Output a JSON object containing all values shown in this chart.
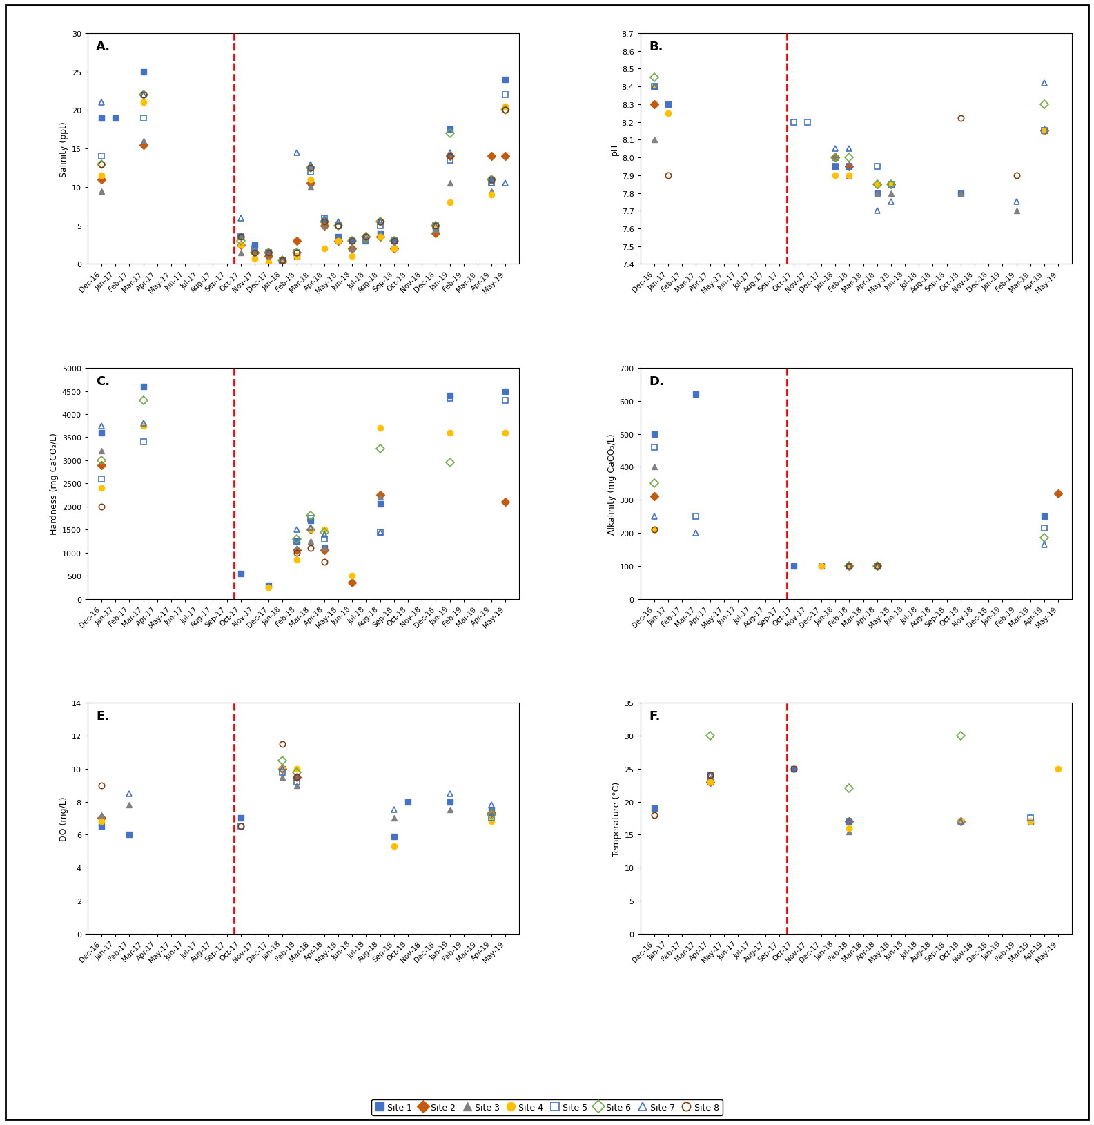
{
  "x_labels": [
    "Dec-16",
    "Jan-17",
    "Feb-17",
    "Mar-17",
    "Apr-17",
    "May-17",
    "Jun-17",
    "Jul-17",
    "Aug-17",
    "Sep-17",
    "Oct-17",
    "Nov-17",
    "Dec-17",
    "Jan-18",
    "Feb-18",
    "Mar-18",
    "Apr-18",
    "May-18",
    "Jun-18",
    "Jul-18",
    "Aug-18",
    "Sep-18",
    "Oct-18",
    "Nov-18",
    "Dec-18",
    "Jan-19",
    "Feb-19",
    "Mar-19",
    "Apr-19",
    "May-19"
  ],
  "sites": [
    "Site 1",
    "Site 2",
    "Site 3",
    "Site 4",
    "Site 5",
    "Site 6",
    "Site 7",
    "Site 8"
  ],
  "colors": [
    "#4472C4",
    "#C55A11",
    "#808080",
    "#FFC000",
    "#4472C4",
    "#70AD47",
    "#4472C4",
    "#843C0C"
  ],
  "markers": [
    "s",
    "D",
    "^",
    "o",
    "s",
    "D",
    "^",
    "o"
  ],
  "filled": [
    true,
    true,
    true,
    true,
    false,
    false,
    false,
    false
  ],
  "panel_labels": [
    "A.",
    "B.",
    "C.",
    "D.",
    "E.",
    "F."
  ],
  "salinity": [
    [
      0,
      19,
      1,
      19,
      3,
      25,
      10,
      3.5,
      11,
      2.5,
      12,
      1.5,
      13,
      0.5,
      14,
      1.0,
      15,
      10.5,
      16,
      5.5,
      17,
      3.5,
      18,
      3.0,
      19,
      3.5,
      20,
      4.0,
      21,
      3.0,
      24,
      4.5,
      25,
      17.5,
      28,
      11.0,
      29,
      24.0
    ],
    [
      0,
      11,
      3,
      15.5,
      10,
      2.5,
      11,
      1.5,
      12,
      1.0,
      13,
      0.3,
      14,
      3.0,
      15,
      10.5,
      16,
      5.0,
      17,
      3.0,
      18,
      2.0,
      19,
      3.5,
      20,
      3.5,
      21,
      2.0,
      24,
      4.0,
      25,
      14.0,
      28,
      14.0,
      29,
      14.0
    ],
    [
      0,
      9.5,
      3,
      16.0,
      10,
      1.5,
      11,
      1.2,
      12,
      0.5,
      13,
      0.2,
      14,
      1.0,
      15,
      10.0,
      16,
      5.0,
      17,
      3.0,
      18,
      2.0,
      19,
      3.0,
      20,
      4.0,
      21,
      2.5,
      24,
      4.5,
      25,
      10.5,
      28,
      9.5
    ],
    [
      0,
      11.5,
      3,
      21.0,
      10,
      2.5,
      11,
      0.7,
      12,
      0.2,
      13,
      0.2,
      14,
      1.0,
      15,
      11.0,
      16,
      2.0,
      17,
      3.0,
      18,
      1.0,
      19,
      3.5,
      20,
      3.5,
      21,
      2.0,
      24,
      5.0,
      25,
      8.0,
      28,
      9.0,
      29,
      20.5
    ],
    [
      0,
      14,
      3,
      19.0,
      10,
      3.5,
      11,
      2.0,
      12,
      1.5,
      13,
      0.5,
      14,
      1.5,
      15,
      12.0,
      16,
      6.0,
      17,
      5.0,
      18,
      3.0,
      19,
      3.0,
      20,
      5.0,
      21,
      3.0,
      24,
      5.0,
      25,
      13.5,
      28,
      10.5,
      29,
      22.0
    ],
    [
      0,
      13,
      3,
      22.0,
      10,
      3.0,
      11,
      1.5,
      12,
      1.5,
      13,
      0.5,
      14,
      1.5,
      15,
      12.5,
      16,
      5.5,
      17,
      5.0,
      18,
      3.0,
      19,
      3.5,
      20,
      5.5,
      21,
      3.0,
      24,
      5.0,
      25,
      17.0,
      28,
      11.0,
      29,
      20.0
    ],
    [
      0,
      21,
      3,
      22.0,
      10,
      6.0,
      11,
      2.0,
      12,
      1.5,
      13,
      0.5,
      14,
      14.5,
      15,
      13.0,
      16,
      6.0,
      17,
      5.5,
      18,
      3.0,
      19,
      3.5,
      20,
      5.5,
      21,
      3.0,
      24,
      5.0,
      25,
      14.5,
      28,
      10.5,
      29,
      10.5
    ],
    [
      0,
      13,
      3,
      22.0,
      10,
      3.5,
      11,
      1.5,
      12,
      1.5,
      13,
      0.5,
      14,
      1.5,
      15,
      12.5,
      16,
      5.5,
      17,
      5.0,
      18,
      3.0,
      19,
      3.5,
      20,
      5.5,
      21,
      3.0,
      24,
      5.0,
      25,
      14.0,
      28,
      11.0,
      29,
      20.0
    ]
  ],
  "pH": [
    [
      0,
      8.4,
      1,
      8.3,
      13,
      7.95,
      14,
      7.95,
      16,
      7.8,
      17,
      7.85,
      22,
      7.8,
      28,
      8.15
    ],
    [
      0,
      8.3,
      13,
      8.0,
      14,
      7.95,
      16,
      7.85,
      17,
      7.85,
      28,
      8.15
    ],
    [
      0,
      8.1,
      13,
      8.0,
      14,
      7.9,
      16,
      7.8,
      17,
      7.8,
      22,
      7.8,
      26,
      7.7
    ],
    [
      0,
      8.4,
      1,
      8.25,
      13,
      7.9,
      14,
      7.9,
      16,
      7.85,
      17,
      7.85,
      28,
      8.15
    ],
    [
      0,
      8.4,
      10,
      8.2,
      11,
      8.2,
      13,
      7.95,
      14,
      7.95,
      16,
      7.95,
      17,
      7.85,
      28,
      8.15
    ],
    [
      0,
      8.45,
      13,
      8.0,
      14,
      8.0,
      16,
      7.85,
      17,
      7.85,
      28,
      8.3
    ],
    [
      0,
      8.4,
      13,
      8.05,
      14,
      8.05,
      16,
      7.7,
      17,
      7.75,
      26,
      7.75,
      28,
      8.42
    ],
    [
      1,
      7.9,
      22,
      8.22,
      26,
      7.9
    ]
  ],
  "hardness": [
    [
      0,
      3600,
      3,
      4600,
      10,
      550,
      12,
      300,
      14,
      1250,
      15,
      1700,
      16,
      1100,
      20,
      2050,
      25,
      4400,
      29,
      4500
    ],
    [
      0,
      2900,
      14,
      1050,
      15,
      1500,
      16,
      1050,
      18,
      350,
      20,
      2250,
      29,
      2100
    ],
    [
      0,
      3200,
      14,
      1100,
      15,
      1250,
      16,
      1100,
      20,
      2200
    ],
    [
      0,
      2400,
      3,
      3750,
      12,
      250,
      14,
      850,
      15,
      1500,
      16,
      1500,
      18,
      500,
      20,
      3700,
      25,
      3600,
      29,
      3600
    ],
    [
      0,
      2600,
      3,
      3400,
      14,
      1250,
      15,
      1750,
      16,
      1300,
      20,
      1450,
      25,
      4350,
      29,
      4300
    ],
    [
      0,
      3000,
      3,
      4300,
      14,
      1300,
      15,
      1800,
      16,
      1450,
      20,
      3250,
      25,
      2950
    ],
    [
      0,
      3750,
      3,
      3800,
      14,
      1500,
      15,
      1550,
      16,
      1400,
      20,
      1450
    ],
    [
      0,
      2000,
      14,
      1000,
      15,
      1100,
      16,
      800
    ]
  ],
  "alkalinity": [
    [
      0,
      500,
      3,
      620,
      10,
      100,
      12,
      100,
      14,
      100,
      16,
      100,
      28,
      250
    ],
    [
      0,
      310,
      14,
      100,
      16,
      100,
      29,
      320
    ],
    [
      0,
      400,
      14,
      100,
      16,
      100
    ],
    [
      0,
      210,
      12,
      100,
      14,
      100,
      16,
      100
    ],
    [
      0,
      460,
      3,
      250,
      14,
      100,
      16,
      100,
      28,
      215
    ],
    [
      0,
      350,
      14,
      100,
      16,
      100,
      28,
      185
    ],
    [
      0,
      250,
      3,
      200,
      14,
      100,
      16,
      100,
      28,
      165
    ],
    [
      0,
      210,
      14,
      100,
      16,
      100
    ]
  ],
  "DO": [
    [
      0,
      6.5,
      2,
      6.0,
      10,
      7.0,
      13,
      10.0,
      14,
      9.5,
      21,
      5.9,
      22,
      8.0,
      25,
      8.0,
      28,
      7.5
    ],
    [
      0,
      7.0,
      13,
      10.0,
      14,
      9.5,
      28,
      7.3
    ],
    [
      0,
      7.2,
      2,
      7.8,
      13,
      9.5,
      14,
      9.0,
      21,
      7.0,
      25,
      7.5,
      28,
      7.5
    ],
    [
      0,
      6.8,
      13,
      10.0,
      14,
      10.0,
      21,
      5.3,
      28,
      6.8
    ],
    [
      10,
      6.5,
      13,
      9.8,
      14,
      9.2,
      28,
      7.0
    ],
    [
      13,
      10.5,
      14,
      9.8,
      28,
      7.2
    ],
    [
      2,
      8.5,
      13,
      10.0,
      14,
      9.5,
      21,
      7.5,
      25,
      8.5,
      28,
      7.8
    ],
    [
      0,
      9.0,
      10,
      6.5,
      13,
      11.5,
      14,
      9.5
    ]
  ],
  "temperature": [
    [
      0,
      19,
      4,
      23,
      10,
      25,
      14,
      17,
      22,
      17,
      27,
      17
    ],
    [
      4,
      23,
      14,
      17,
      22,
      17
    ],
    [
      4,
      23.5,
      14,
      15.5,
      22,
      17
    ],
    [
      4,
      23,
      14,
      16,
      22,
      17,
      27,
      17,
      29,
      25
    ],
    [
      4,
      24,
      14,
      17,
      27,
      17.5
    ],
    [
      4,
      30,
      14,
      22,
      22,
      30
    ],
    [
      4,
      24,
      14,
      17,
      22,
      17
    ],
    [
      0,
      18,
      4,
      24,
      10,
      25
    ]
  ],
  "panel_configs": [
    {
      "label": "A.",
      "ylabel": "Salinity (ppt)",
      "ylim": [
        0,
        30
      ],
      "yticks": [
        0,
        5,
        10,
        15,
        20,
        25,
        30
      ]
    },
    {
      "label": "B.",
      "ylabel": "pH",
      "ylim": [
        7.4,
        8.7
      ],
      "yticks": [
        7.4,
        7.5,
        7.6,
        7.7,
        7.8,
        7.9,
        8.0,
        8.1,
        8.2,
        8.3,
        8.4,
        8.5,
        8.6,
        8.7
      ]
    },
    {
      "label": "C.",
      "ylabel": "Hardness (mg CaCO₃/L)",
      "ylim": [
        0,
        5000
      ],
      "yticks": [
        0,
        500,
        1000,
        1500,
        2000,
        2500,
        3000,
        3500,
        4000,
        4500,
        5000
      ]
    },
    {
      "label": "D.",
      "ylabel": "Alkalinity (mg CaCO₃/L)",
      "ylim": [
        0,
        700
      ],
      "yticks": [
        0,
        100,
        200,
        300,
        400,
        500,
        600,
        700
      ]
    },
    {
      "label": "E.",
      "ylabel": "DO (mg/L)",
      "ylim": [
        0,
        14
      ],
      "yticks": [
        0,
        2,
        4,
        6,
        8,
        10,
        12,
        14
      ]
    },
    {
      "label": "F.",
      "ylabel": "Temperature (°C)",
      "ylim": [
        0,
        35
      ],
      "yticks": [
        0,
        5,
        10,
        15,
        20,
        25,
        30,
        35
      ]
    }
  ]
}
